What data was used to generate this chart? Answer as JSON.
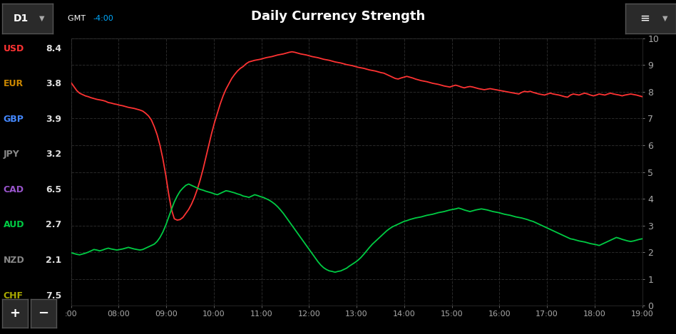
{
  "title": "Daily Currency Strength",
  "background_color": "#000000",
  "grid_color": "#2a2a2a",
  "title_color": "#ffffff",
  "title_fontsize": 13,
  "ylim": [
    0,
    10
  ],
  "yticks": [
    0,
    1,
    2,
    3,
    4,
    5,
    6,
    7,
    8,
    9,
    10
  ],
  "x_labels": [
    ":00",
    "08:00",
    "09:00",
    "10:00",
    "11:00",
    "12:00",
    "13:00",
    "14:00",
    "15:00",
    "16:00",
    "17:00",
    "18:00",
    "19:00"
  ],
  "gmt_text": "GMT ",
  "gmt_offset": "-4:00",
  "gmt_color": "#ffffff",
  "gmt_offset_color": "#00aaff",
  "currencies": [
    {
      "name": "USD",
      "value": "8.4",
      "color": "#ff3333"
    },
    {
      "name": "EUR",
      "value": "3.8",
      "color": "#cc8800"
    },
    {
      "name": "GBP",
      "value": "3.9",
      "color": "#4488ff"
    },
    {
      "name": "JPY",
      "value": "3.2",
      "color": "#888888"
    },
    {
      "name": "CAD",
      "value": "6.5",
      "color": "#9955cc"
    },
    {
      "name": "AUD",
      "value": "2.7",
      "color": "#00cc44"
    },
    {
      "name": "NZD",
      "value": "2.1",
      "color": "#888888"
    },
    {
      "name": "CHF",
      "value": "7.5",
      "color": "#aaaa00"
    }
  ],
  "usd_color": "#ff3333",
  "aud_color": "#00cc44",
  "usd_data": [
    8.35,
    8.2,
    8.05,
    7.95,
    7.9,
    7.85,
    7.82,
    7.78,
    7.75,
    7.72,
    7.7,
    7.68,
    7.65,
    7.6,
    7.58,
    7.55,
    7.53,
    7.5,
    7.48,
    7.45,
    7.42,
    7.4,
    7.38,
    7.35,
    7.32,
    7.28,
    7.2,
    7.1,
    6.95,
    6.7,
    6.4,
    6.0,
    5.5,
    4.9,
    4.2,
    3.6,
    3.25,
    3.2,
    3.22,
    3.3,
    3.45,
    3.6,
    3.8,
    4.05,
    4.35,
    4.7,
    5.1,
    5.55,
    6.0,
    6.45,
    6.85,
    7.2,
    7.55,
    7.85,
    8.1,
    8.3,
    8.5,
    8.65,
    8.78,
    8.88,
    8.95,
    9.05,
    9.12,
    9.15,
    9.18,
    9.2,
    9.22,
    9.25,
    9.28,
    9.3,
    9.32,
    9.35,
    9.38,
    9.4,
    9.42,
    9.45,
    9.48,
    9.5,
    9.48,
    9.45,
    9.42,
    9.4,
    9.38,
    9.35,
    9.32,
    9.3,
    9.28,
    9.25,
    9.22,
    9.2,
    9.18,
    9.15,
    9.12,
    9.1,
    9.08,
    9.05,
    9.02,
    9.0,
    8.98,
    8.95,
    8.92,
    8.9,
    8.88,
    8.85,
    8.82,
    8.8,
    8.78,
    8.75,
    8.72,
    8.7,
    8.65,
    8.6,
    8.55,
    8.5,
    8.48,
    8.52,
    8.55,
    8.58,
    8.55,
    8.52,
    8.48,
    8.45,
    8.42,
    8.4,
    8.38,
    8.35,
    8.32,
    8.3,
    8.28,
    8.25,
    8.22,
    8.2,
    8.18,
    8.22,
    8.25,
    8.22,
    8.18,
    8.15,
    8.18,
    8.2,
    8.18,
    8.15,
    8.12,
    8.1,
    8.08,
    8.1,
    8.12,
    8.1,
    8.08,
    8.06,
    8.04,
    8.02,
    8.0,
    7.98,
    7.96,
    7.94,
    7.92,
    7.98,
    8.02,
    8.0,
    8.02,
    7.98,
    7.95,
    7.92,
    7.9,
    7.88,
    7.92,
    7.95,
    7.92,
    7.9,
    7.88,
    7.85,
    7.82,
    7.8,
    7.88,
    7.92,
    7.9,
    7.88,
    7.92,
    7.95,
    7.92,
    7.88,
    7.85,
    7.88,
    7.92,
    7.9,
    7.88,
    7.92,
    7.95,
    7.92,
    7.9,
    7.88,
    7.85,
    7.88,
    7.9,
    7.92,
    7.9,
    7.88,
    7.85,
    7.82
  ],
  "aud_data": [
    1.98,
    1.95,
    1.92,
    1.9,
    1.93,
    1.96,
    2.0,
    2.05,
    2.1,
    2.08,
    2.05,
    2.08,
    2.12,
    2.15,
    2.12,
    2.1,
    2.08,
    2.1,
    2.12,
    2.15,
    2.18,
    2.15,
    2.12,
    2.1,
    2.08,
    2.1,
    2.15,
    2.2,
    2.25,
    2.3,
    2.4,
    2.55,
    2.75,
    3.0,
    3.3,
    3.6,
    3.88,
    4.1,
    4.28,
    4.4,
    4.5,
    4.55,
    4.5,
    4.45,
    4.4,
    4.35,
    4.32,
    4.28,
    4.25,
    4.22,
    4.18,
    4.15,
    4.2,
    4.25,
    4.3,
    4.28,
    4.25,
    4.22,
    4.18,
    4.15,
    4.1,
    4.08,
    4.05,
    4.1,
    4.15,
    4.12,
    4.08,
    4.05,
    4.0,
    3.95,
    3.88,
    3.8,
    3.7,
    3.58,
    3.45,
    3.3,
    3.15,
    3.0,
    2.85,
    2.7,
    2.55,
    2.4,
    2.25,
    2.1,
    1.95,
    1.8,
    1.65,
    1.52,
    1.42,
    1.35,
    1.3,
    1.28,
    1.25,
    1.28,
    1.3,
    1.35,
    1.4,
    1.48,
    1.55,
    1.62,
    1.7,
    1.8,
    1.92,
    2.05,
    2.18,
    2.3,
    2.4,
    2.5,
    2.6,
    2.7,
    2.8,
    2.88,
    2.95,
    3.0,
    3.05,
    3.1,
    3.15,
    3.18,
    3.22,
    3.25,
    3.28,
    3.3,
    3.32,
    3.35,
    3.38,
    3.4,
    3.42,
    3.45,
    3.48,
    3.5,
    3.52,
    3.55,
    3.58,
    3.6,
    3.62,
    3.65,
    3.62,
    3.58,
    3.55,
    3.52,
    3.55,
    3.58,
    3.6,
    3.62,
    3.6,
    3.58,
    3.55,
    3.52,
    3.5,
    3.48,
    3.45,
    3.42,
    3.4,
    3.38,
    3.35,
    3.32,
    3.3,
    3.28,
    3.25,
    3.22,
    3.18,
    3.15,
    3.1,
    3.05,
    3.0,
    2.95,
    2.9,
    2.85,
    2.8,
    2.75,
    2.7,
    2.65,
    2.6,
    2.55,
    2.5,
    2.48,
    2.45,
    2.42,
    2.4,
    2.38,
    2.35,
    2.32,
    2.3,
    2.28,
    2.25,
    2.3,
    2.35,
    2.4,
    2.45,
    2.5,
    2.55,
    2.52,
    2.48,
    2.45,
    2.42,
    2.4,
    2.42,
    2.45,
    2.48,
    2.5
  ]
}
